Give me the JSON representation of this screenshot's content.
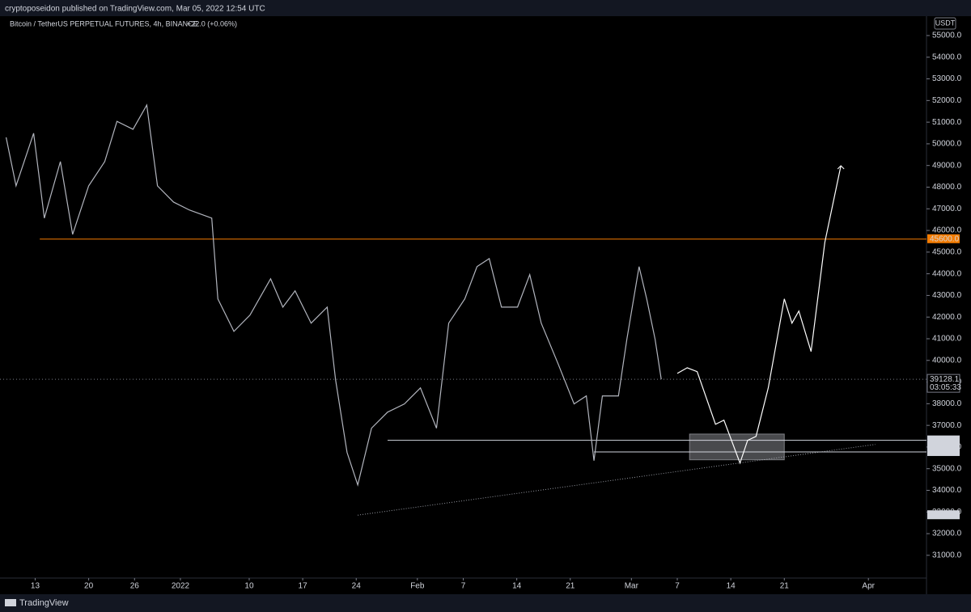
{
  "header": {
    "publisher": "cryptoposeidon published on TradingView.com, Mar 05, 2022 12:54 UTC",
    "symbol": "Bitcoin / TetherUS PERPETUAL FUTURES, 4h, BINANCE",
    "change": "+22.0 (+0.06%)"
  },
  "footer": {
    "brand": "TradingView"
  },
  "chart_data": {
    "type": "line",
    "currency": "USDT",
    "xlim": [
      -23.6,
      97.6
    ],
    "ylim": [
      29950,
      55820
    ],
    "xticks": [
      {
        "value": -19,
        "label": "13"
      },
      {
        "value": -12,
        "label": "20"
      },
      {
        "value": -6,
        "label": "26"
      },
      {
        "value": 0,
        "label": "2022"
      },
      {
        "value": 9,
        "label": "10"
      },
      {
        "value": 16,
        "label": "17"
      },
      {
        "value": 23,
        "label": "24"
      },
      {
        "value": 31,
        "label": "Feb"
      },
      {
        "value": 37,
        "label": "7"
      },
      {
        "value": 44,
        "label": "14"
      },
      {
        "value": 51,
        "label": "21"
      },
      {
        "value": 59,
        "label": "Mar"
      },
      {
        "value": 65,
        "label": "7"
      },
      {
        "value": 72,
        "label": "14"
      },
      {
        "value": 79,
        "label": "21"
      },
      {
        "value": 90,
        "label": "Apr"
      }
    ],
    "yticks": [
      {
        "value": 31000,
        "label": "31000.0"
      },
      {
        "value": 32000,
        "label": "32000.0"
      },
      {
        "value": 33000,
        "label": "33000.0"
      },
      {
        "value": 34000,
        "label": "34000.0"
      },
      {
        "value": 35000,
        "label": "35000.0"
      },
      {
        "value": 36000,
        "label": "36000.0"
      },
      {
        "value": 37000,
        "label": "37000.0"
      },
      {
        "value": 38000,
        "label": "38000.0"
      },
      {
        "value": 39000,
        "label": "39000.0"
      },
      {
        "value": 40000,
        "label": "40000.0"
      },
      {
        "value": 41000,
        "label": "41000.0"
      },
      {
        "value": 42000,
        "label": "42000.0"
      },
      {
        "value": 43000,
        "label": "43000.0"
      },
      {
        "value": 44000,
        "label": "44000.0"
      },
      {
        "value": 45000,
        "label": "45000.0"
      },
      {
        "value": 46000,
        "label": "46000.0"
      },
      {
        "value": 47000,
        "label": "47000.0"
      },
      {
        "value": 48000,
        "label": "48000.0"
      },
      {
        "value": 49000,
        "label": "49000.0"
      },
      {
        "value": 50000,
        "label": "50000.0"
      },
      {
        "value": 51000,
        "label": "51000.0"
      },
      {
        "value": 52000,
        "label": "52000.0"
      },
      {
        "value": 53000,
        "label": "53000.0"
      },
      {
        "value": 54000,
        "label": "54000.0"
      },
      {
        "value": 55000,
        "label": "55000.0"
      }
    ],
    "series": [
      {
        "color": "#b2b5be",
        "x": [
          -22.8,
          -21.5,
          -19.2,
          -17.8,
          -15.7,
          -14.1,
          -12.0,
          -9.9,
          -8.3,
          -6.2,
          -4.4,
          -3.0,
          -0.9,
          1.2,
          4.1,
          4.9,
          7.0,
          9.1,
          11.8,
          13.4,
          15.0,
          17.1,
          19.2,
          20.3,
          21.8,
          23.2,
          25.0,
          27.1,
          29.3,
          31.4,
          33.5,
          35.1,
          37.2,
          38.8,
          40.4,
          42.0,
          44.1,
          45.7,
          47.2,
          49.4,
          51.5,
          53.1,
          54.1,
          55.2,
          57.3,
          58.4,
          60.0,
          61.0,
          62.1,
          62.9
        ],
        "values": [
          50300,
          48060,
          50490,
          46570,
          49180,
          45820,
          48060,
          49180,
          51040,
          50670,
          51790,
          48060,
          47310,
          46940,
          46570,
          42840,
          41340,
          42090,
          43770,
          42460,
          43210,
          41720,
          42460,
          39100,
          35750,
          34250,
          36870,
          37610,
          37990,
          38730,
          36870,
          41720,
          42840,
          44330,
          44700,
          42460,
          42460,
          43960,
          41720,
          39850,
          37990,
          38360,
          35370,
          38360,
          38360,
          40970,
          44330,
          42840,
          40970,
          39128.1
        ]
      },
      {
        "color": "#ffffff",
        "x": [
          65.0,
          66.3,
          67.6,
          70.0,
          71.1,
          73.2,
          74.2,
          75.3,
          76.9,
          79.0,
          80.0,
          80.9,
          82.5,
          84.3,
          86.4
        ],
        "values": [
          39400,
          39660,
          39480,
          37050,
          37240,
          35260,
          36310,
          36490,
          38730,
          42840,
          41720,
          42280,
          40410,
          45450,
          48990
        ]
      }
    ],
    "levels": [
      {
        "value": 45600,
        "label": "45600.0",
        "from": -18.4,
        "color": "#f57c00"
      },
      {
        "value": 39128.1,
        "label": "39128.1",
        "from": -23.6,
        "color": "#787b86",
        "countdown": "03:05:33"
      },
      {
        "value": 36309,
        "label": "36309.0",
        "from": 27.1,
        "color": "#d1d4dc"
      },
      {
        "value": 36087.1,
        "label": "36087.1",
        "from": 97.6,
        "color": "#d1d4dc"
      },
      {
        "value": 35772.4,
        "label": "35772.4",
        "from": 54.1,
        "color": "#d1d4dc"
      },
      {
        "value": 32853.8,
        "label": "32853.8",
        "from": 97.6,
        "color": "#d1d4dc"
      }
    ],
    "trendline": {
      "x": [
        23.2,
        90.9
      ],
      "values": [
        32853.8,
        36120
      ],
      "color": "#9598a1"
    },
    "box": {
      "x": [
        66.6,
        79.0
      ],
      "values": [
        36600,
        35410
      ],
      "color": "#d1d4dc"
    }
  }
}
